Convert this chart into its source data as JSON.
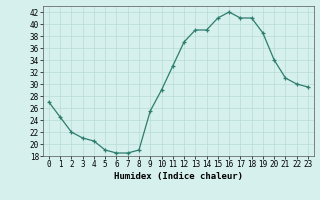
{
  "x": [
    0,
    1,
    2,
    3,
    4,
    5,
    6,
    7,
    8,
    9,
    10,
    11,
    12,
    13,
    14,
    15,
    16,
    17,
    18,
    19,
    20,
    21,
    22,
    23
  ],
  "y": [
    27,
    24.5,
    22,
    21,
    20.5,
    19,
    18.5,
    18.5,
    19,
    25.5,
    29,
    33,
    37,
    39,
    39,
    41,
    42,
    41,
    41,
    38.5,
    34,
    31,
    30,
    29.5
  ],
  "title": "",
  "xlabel": "Humidex (Indice chaleur)",
  "ylabel": "",
  "xlim": [
    -0.5,
    23.5
  ],
  "ylim": [
    18,
    43
  ],
  "yticks": [
    18,
    20,
    22,
    24,
    26,
    28,
    30,
    32,
    34,
    36,
    38,
    40,
    42
  ],
  "xticks": [
    0,
    1,
    2,
    3,
    4,
    5,
    6,
    7,
    8,
    9,
    10,
    11,
    12,
    13,
    14,
    15,
    16,
    17,
    18,
    19,
    20,
    21,
    22,
    23
  ],
  "line_color": "#2d7d6e",
  "marker": "+",
  "bg_color": "#d6f0ed",
  "grid_color": "#b8dbd6",
  "label_fontsize": 6.5,
  "tick_fontsize": 5.5
}
